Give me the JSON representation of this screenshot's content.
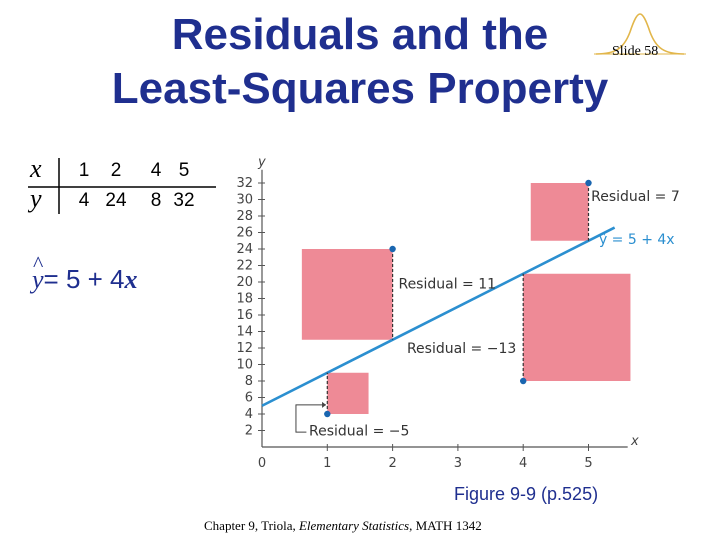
{
  "slide": {
    "title_line1": "Residuals and the",
    "title_line2": "Least-Squares Property",
    "slide_number": "Slide 58",
    "equation_prefix": "= 5 + 4",
    "equation_var": "x",
    "equation_hat": "^",
    "equation_y": "y",
    "caption": "Figure 9-9 (p.525)",
    "footer_pre": "Chapter 9, Triola, ",
    "footer_italic": "Elementary Statistics",
    "footer_post": ", MATH 1342"
  },
  "table": {
    "x_label": "x",
    "y_label": "y",
    "x_values": [
      "1",
      "2",
      "4",
      "5"
    ],
    "y_values": [
      "4",
      "24",
      "8",
      "32"
    ]
  },
  "chart_data": {
    "type": "scatter",
    "title": "",
    "xlabel": "x",
    "ylabel": "y",
    "xlim": [
      0,
      5.5
    ],
    "ylim": [
      0,
      33
    ],
    "x_ticks": [
      0,
      1,
      2,
      3,
      4,
      5
    ],
    "y_ticks": [
      2,
      4,
      6,
      8,
      10,
      12,
      14,
      16,
      18,
      20,
      22,
      24,
      26,
      28,
      30,
      32
    ],
    "points": [
      {
        "x": 1,
        "y": 4
      },
      {
        "x": 2,
        "y": 24
      },
      {
        "x": 4,
        "y": 8
      },
      {
        "x": 5,
        "y": 32
      }
    ],
    "regression_line": {
      "intercept": 5,
      "slope": 4,
      "label": "ŷ = 5 + 4x"
    },
    "residuals": [
      {
        "x": 1,
        "value": -5,
        "label": "Residual = −5"
      },
      {
        "x": 2,
        "value": 11,
        "label": "Residual = 11"
      },
      {
        "x": 4,
        "value": -13,
        "label": "Residual = −13"
      },
      {
        "x": 5,
        "value": 7,
        "label": "Residual = 7"
      }
    ],
    "colors": {
      "squares": "#ee8a96",
      "line": "#2b8fd0",
      "points": "#1a66b0",
      "axes": "#555555"
    }
  }
}
